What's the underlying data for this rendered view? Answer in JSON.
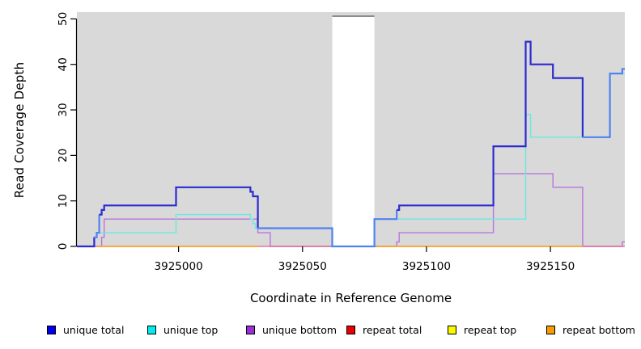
{
  "figure": {
    "ylabel": "Read Coverage Depth",
    "xlabel": "Coordinate in Reference Genome"
  },
  "legend": [
    {
      "label": "unique total",
      "color": "#0000f0"
    },
    {
      "label": "unique top",
      "color": "#00ecec"
    },
    {
      "label": "unique bottom",
      "color": "#9a2ed8"
    },
    {
      "label": "repeat total",
      "color": "#e80000"
    },
    {
      "label": "repeat top",
      "color": "#f8f800"
    },
    {
      "label": "repeat bottom",
      "color": "#f59c00"
    }
  ],
  "chart_data": {
    "type": "line",
    "step": true,
    "title": "",
    "xlabel": "Coordinate in Reference Genome",
    "ylabel": "Read Coverage Depth",
    "xlim": [
      3924959,
      3925180
    ],
    "ylim": [
      0,
      50
    ],
    "xticks": [
      3925000,
      3925050,
      3925100,
      3925150
    ],
    "yticks": [
      0,
      10,
      20,
      30,
      40,
      50
    ],
    "grid": false,
    "legend_position": "bottom",
    "panel_background": "#d9d9d9",
    "axis_color": "#000000",
    "masked_region": {
      "start": 3925062,
      "end": 3925079,
      "fill": "#ffffff",
      "top_border": "#8c8c8c"
    },
    "series": [
      {
        "name": "unique bottom",
        "color": "#bb74dc",
        "width": 1.4,
        "points": [
          [
            3924959,
            0
          ],
          [
            3924969,
            2
          ],
          [
            3924970,
            6
          ],
          [
            3925032,
            3
          ],
          [
            3925037,
            0
          ],
          [
            3925088,
            1
          ],
          [
            3925089,
            3
          ],
          [
            3925127,
            16
          ],
          [
            3925151,
            13
          ],
          [
            3925163,
            0
          ],
          [
            3925179,
            1
          ],
          [
            3925180,
            1
          ]
        ]
      },
      {
        "name": "repeat total",
        "color": "#dd6688",
        "width": 1.2,
        "value": 0,
        "runs": [
          [
            3924967,
            3925180
          ]
        ]
      },
      {
        "name": "repeat top",
        "color": "#f5f500",
        "width": 1.4,
        "value": 0,
        "runs": [
          [
            3924967,
            3925032
          ],
          [
            3925080,
            3925163
          ]
        ]
      },
      {
        "name": "repeat bottom",
        "color": "#f59c32",
        "width": 1.6,
        "value": 0,
        "runs": [
          [
            3924967,
            3925032
          ],
          [
            3925080,
            3925163
          ]
        ]
      },
      {
        "name": "unique top",
        "color": "#68e9e1",
        "width": 1.4,
        "points": [
          [
            3924959,
            0
          ],
          [
            3924966,
            2
          ],
          [
            3924967,
            3
          ],
          [
            3924999,
            7
          ],
          [
            3925029,
            6
          ],
          [
            3925030,
            5
          ],
          [
            3925031,
            4
          ],
          [
            3925062,
            0
          ],
          [
            3925079,
            6
          ],
          [
            3925140,
            29
          ],
          [
            3925142,
            24
          ],
          [
            3925174,
            38
          ],
          [
            3925180,
            38
          ]
        ]
      },
      {
        "name": "unique total",
        "width": 2.2,
        "colors": {
          "dark": "#2b2bd1",
          "light": "#4f83f1"
        },
        "color_segments": [
          {
            "from": 3924959,
            "to": 3924966,
            "color": "dark"
          },
          {
            "from": 3924966,
            "to": 3924968,
            "color": "light"
          },
          {
            "from": 3924968,
            "to": 3925032,
            "color": "dark"
          },
          {
            "from": 3925032,
            "to": 3925088,
            "color": "light"
          },
          {
            "from": 3925088,
            "to": 3925163,
            "color": "dark"
          },
          {
            "from": 3925163,
            "to": 3925180,
            "color": "light"
          }
        ],
        "points": [
          [
            3924959,
            0
          ],
          [
            3924966,
            2
          ],
          [
            3924967,
            3
          ],
          [
            3924968,
            7
          ],
          [
            3924969,
            8
          ],
          [
            3924970,
            9
          ],
          [
            3924999,
            13
          ],
          [
            3925029,
            12
          ],
          [
            3925030,
            11
          ],
          [
            3925032,
            4
          ],
          [
            3925062,
            0
          ],
          [
            3925079,
            6
          ],
          [
            3925088,
            8
          ],
          [
            3925089,
            9
          ],
          [
            3925127,
            22
          ],
          [
            3925140,
            45
          ],
          [
            3925142,
            40
          ],
          [
            3925151,
            37
          ],
          [
            3925163,
            24
          ],
          [
            3925174,
            38
          ],
          [
            3925179,
            39
          ],
          [
            3925180,
            39
          ]
        ]
      }
    ]
  }
}
